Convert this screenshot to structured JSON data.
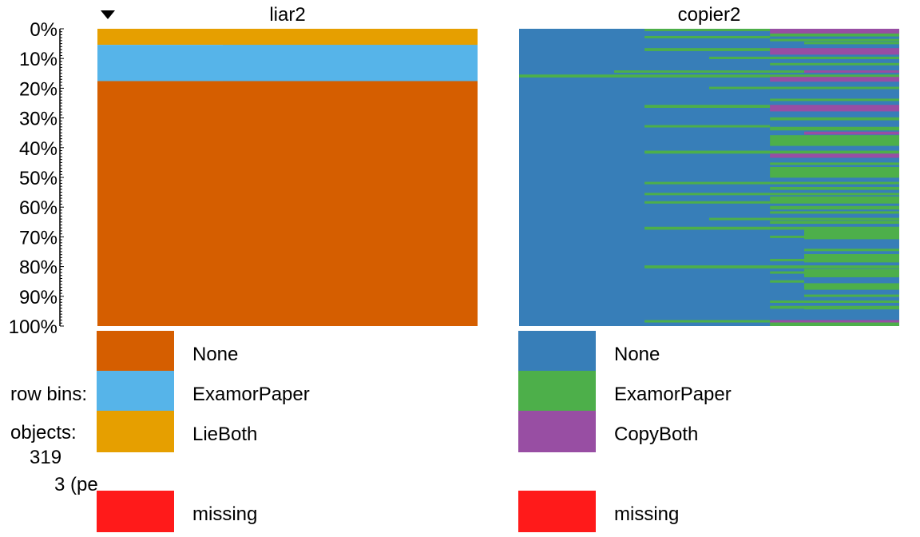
{
  "chart_data": {
    "type": "tableplot",
    "sort_indicator": "descending",
    "y_axis": {
      "ticks": [
        "0%",
        "10%",
        "20%",
        "30%",
        "40%",
        "50%",
        "60%",
        "70%",
        "80%",
        "90%",
        "100%"
      ],
      "ylim": [
        0,
        100
      ]
    },
    "info": {
      "row_bins_label": "row bins:",
      "objects_label": "objects:",
      "objects_value": "319",
      "bin_size_text": "3 (pe"
    },
    "columns": [
      {
        "title": "liar2",
        "sorted": true,
        "segments": [
          {
            "category": "LieBoth",
            "from": 0,
            "to": 5.4
          },
          {
            "category": "LieBoth",
            "from": 0,
            "to": 6.2,
            "x_from": 0.33
          },
          {
            "category": "ExamorPaper",
            "from": 5.4,
            "to": 17.6
          },
          {
            "category": "ExamorPaper",
            "from": 6.2,
            "to": 17.6,
            "x_from": 0.33
          },
          {
            "category": "None",
            "from": 17.6,
            "to": 100
          }
        ],
        "legend": [
          {
            "label": "None",
            "color": "#D55E00"
          },
          {
            "label": "ExamorPaper",
            "color": "#56B4E9"
          },
          {
            "label": "LieBoth",
            "color": "#E69F00"
          },
          {
            "label": "missing",
            "color": "#FF1A1A"
          }
        ]
      },
      {
        "title": "copier2",
        "sorted": false,
        "base_category": "None",
        "stripes": [
          {
            "y": 0.0,
            "h": 0.8,
            "x_from": 0.33,
            "x_to": 0.66,
            "category": "ExamorPaper"
          },
          {
            "y": 0.0,
            "h": 1.6,
            "x_from": 0.66,
            "x_to": 1.0,
            "category": "CopyBoth"
          },
          {
            "y": 1.6,
            "h": 1.0,
            "x_from": 0.66,
            "x_to": 1.0,
            "category": "ExamorPaper"
          },
          {
            "y": 2.4,
            "h": 0.8,
            "x_from": 0.33,
            "x_to": 0.66,
            "category": "ExamorPaper"
          },
          {
            "y": 3.4,
            "h": 0.8,
            "x_from": 0.66,
            "x_to": 1.0,
            "category": "ExamorPaper"
          },
          {
            "y": 4.4,
            "h": 0.8,
            "x_from": 0.75,
            "x_to": 1.0,
            "category": "ExamorPaper"
          },
          {
            "y": 6.5,
            "h": 1.0,
            "x_from": 0.33,
            "x_to": 0.66,
            "category": "ExamorPaper"
          },
          {
            "y": 6.5,
            "h": 2.2,
            "x_from": 0.66,
            "x_to": 1.0,
            "category": "CopyBoth"
          },
          {
            "y": 9.4,
            "h": 0.8,
            "x_from": 0.5,
            "x_to": 1.0,
            "category": "ExamorPaper"
          },
          {
            "y": 11.5,
            "h": 0.8,
            "x_from": 0.66,
            "x_to": 1.0,
            "category": "ExamorPaper"
          },
          {
            "y": 14.0,
            "h": 0.8,
            "x_from": 0.25,
            "x_to": 1.0,
            "category": "ExamorPaper"
          },
          {
            "y": 14.0,
            "h": 0.8,
            "x_from": 0.75,
            "x_to": 1.0,
            "category": "CopyBoth"
          },
          {
            "y": 15.4,
            "h": 1.0,
            "x_from": 0.0,
            "x_to": 1.0,
            "category": "ExamorPaper"
          },
          {
            "y": 16.2,
            "h": 1.6,
            "x_from": 0.66,
            "x_to": 1.0,
            "category": "CopyBoth"
          },
          {
            "y": 19.5,
            "h": 0.8,
            "x_from": 0.5,
            "x_to": 1.0,
            "category": "ExamorPaper"
          },
          {
            "y": 23.5,
            "h": 0.8,
            "x_from": 0.66,
            "x_to": 1.0,
            "category": "ExamorPaper"
          },
          {
            "y": 25.6,
            "h": 1.0,
            "x_from": 0.33,
            "x_to": 0.66,
            "category": "ExamorPaper"
          },
          {
            "y": 25.6,
            "h": 2.2,
            "x_from": 0.66,
            "x_to": 1.0,
            "category": "CopyBoth"
          },
          {
            "y": 29.8,
            "h": 1.0,
            "x_from": 0.66,
            "x_to": 1.0,
            "category": "ExamorPaper"
          },
          {
            "y": 32.4,
            "h": 0.8,
            "x_from": 0.33,
            "x_to": 0.66,
            "category": "ExamorPaper"
          },
          {
            "y": 33.0,
            "h": 1.2,
            "x_from": 0.66,
            "x_to": 1.0,
            "category": "ExamorPaper"
          },
          {
            "y": 34.6,
            "h": 1.0,
            "x_from": 0.75,
            "x_to": 1.0,
            "category": "CopyBoth"
          },
          {
            "y": 35.8,
            "h": 3.6,
            "x_from": 0.66,
            "x_to": 1.0,
            "category": "ExamorPaper"
          },
          {
            "y": 41.0,
            "h": 1.0,
            "x_from": 0.33,
            "x_to": 1.0,
            "category": "ExamorPaper"
          },
          {
            "y": 42.0,
            "h": 1.4,
            "x_from": 0.66,
            "x_to": 1.0,
            "category": "CopyBoth"
          },
          {
            "y": 45.0,
            "h": 0.8,
            "x_from": 0.66,
            "x_to": 1.0,
            "category": "ExamorPaper"
          },
          {
            "y": 46.5,
            "h": 3.6,
            "x_from": 0.66,
            "x_to": 1.0,
            "category": "ExamorPaper"
          },
          {
            "y": 51.5,
            "h": 0.8,
            "x_from": 0.33,
            "x_to": 1.0,
            "category": "ExamorPaper"
          },
          {
            "y": 53.2,
            "h": 1.0,
            "x_from": 0.66,
            "x_to": 1.0,
            "category": "ExamorPaper"
          },
          {
            "y": 55.2,
            "h": 0.8,
            "x_from": 0.33,
            "x_to": 1.0,
            "category": "ExamorPaper"
          },
          {
            "y": 56.4,
            "h": 2.4,
            "x_from": 0.66,
            "x_to": 1.0,
            "category": "ExamorPaper"
          },
          {
            "y": 58.0,
            "h": 0.8,
            "x_from": 0.33,
            "x_to": 0.66,
            "category": "ExamorPaper"
          },
          {
            "y": 59.6,
            "h": 1.2,
            "x_from": 0.66,
            "x_to": 1.0,
            "category": "ExamorPaper"
          },
          {
            "y": 61.4,
            "h": 0.8,
            "x_from": 0.66,
            "x_to": 1.0,
            "category": "ExamorPaper"
          },
          {
            "y": 63.6,
            "h": 0.8,
            "x_from": 0.5,
            "x_to": 1.0,
            "category": "ExamorPaper"
          },
          {
            "y": 64.6,
            "h": 1.0,
            "x_from": 0.66,
            "x_to": 1.0,
            "category": "ExamorPaper"
          },
          {
            "y": 66.6,
            "h": 1.0,
            "x_from": 0.33,
            "x_to": 1.0,
            "category": "ExamorPaper"
          },
          {
            "y": 67.6,
            "h": 3.2,
            "x_from": 0.75,
            "x_to": 1.0,
            "category": "ExamorPaper"
          },
          {
            "y": 69.6,
            "h": 0.8,
            "x_from": 0.66,
            "x_to": 0.75,
            "category": "ExamorPaper"
          },
          {
            "y": 74.0,
            "h": 0.8,
            "x_from": 0.75,
            "x_to": 1.0,
            "category": "ExamorPaper"
          },
          {
            "y": 75.8,
            "h": 2.8,
            "x_from": 0.75,
            "x_to": 1.0,
            "category": "ExamorPaper"
          },
          {
            "y": 77.4,
            "h": 0.8,
            "x_from": 0.66,
            "x_to": 0.75,
            "category": "ExamorPaper"
          },
          {
            "y": 79.6,
            "h": 1.0,
            "x_from": 0.33,
            "x_to": 1.0,
            "category": "ExamorPaper"
          },
          {
            "y": 80.8,
            "h": 2.8,
            "x_from": 0.75,
            "x_to": 1.0,
            "category": "ExamorPaper"
          },
          {
            "y": 81.6,
            "h": 0.8,
            "x_from": 0.66,
            "x_to": 0.75,
            "category": "ExamorPaper"
          },
          {
            "y": 84.6,
            "h": 0.8,
            "x_from": 0.66,
            "x_to": 0.75,
            "category": "ExamorPaper"
          },
          {
            "y": 85.6,
            "h": 2.2,
            "x_from": 0.75,
            "x_to": 1.0,
            "category": "ExamorPaper"
          },
          {
            "y": 89.4,
            "h": 0.8,
            "x_from": 0.75,
            "x_to": 1.0,
            "category": "ExamorPaper"
          },
          {
            "y": 91.4,
            "h": 0.8,
            "x_from": 0.66,
            "x_to": 1.0,
            "category": "ExamorPaper"
          },
          {
            "y": 93.2,
            "h": 1.0,
            "x_from": 0.66,
            "x_to": 0.75,
            "category": "ExamorPaper"
          },
          {
            "y": 93.2,
            "h": 1.2,
            "x_from": 0.75,
            "x_to": 1.0,
            "category": "ExamorPaper"
          },
          {
            "y": 98.0,
            "h": 0.8,
            "x_from": 0.33,
            "x_to": 0.66,
            "category": "ExamorPaper"
          },
          {
            "y": 98.0,
            "h": 0.8,
            "x_from": 0.66,
            "x_to": 1.0,
            "category": "CopyBoth"
          },
          {
            "y": 98.8,
            "h": 1.2,
            "x_from": 0.66,
            "x_to": 1.0,
            "category": "ExamorPaper"
          }
        ],
        "legend": [
          {
            "label": "None",
            "color": "#377EB8"
          },
          {
            "label": "ExamorPaper",
            "color": "#4DAF4A"
          },
          {
            "label": "CopyBoth",
            "color": "#984EA3"
          },
          {
            "label": "missing",
            "color": "#FF1A1A"
          }
        ]
      }
    ]
  }
}
